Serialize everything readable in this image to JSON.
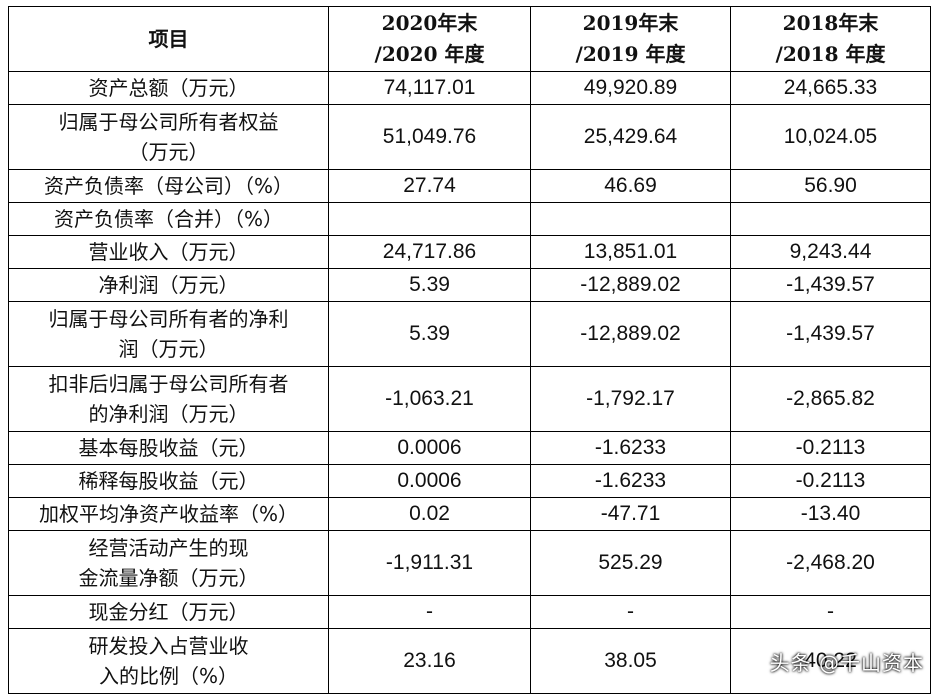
{
  "header": {
    "item": "项目",
    "col1": [
      "2020年末",
      "/2020 年度"
    ],
    "col2": [
      "2019年末",
      "/2019 年度"
    ],
    "col3": [
      "2018年末",
      "/2018 年度"
    ]
  },
  "rows": [
    {
      "label": [
        "资产总额（万元）"
      ],
      "v": [
        "74,117.01",
        "49,920.89",
        "24,665.33"
      ],
      "h": 1
    },
    {
      "label": [
        "归属于母公司所有者权益",
        "（万元）"
      ],
      "v": [
        "51,049.76",
        "25,429.64",
        "10,024.05"
      ],
      "h": 2
    },
    {
      "label": [
        "资产负债率（母公司）（%）"
      ],
      "v": [
        "27.74",
        "46.69",
        "56.90"
      ],
      "h": 1
    },
    {
      "label": [
        "资产负债率（合并）（%）"
      ],
      "v": [
        "",
        "",
        ""
      ],
      "h": 1
    },
    {
      "label": [
        "营业收入（万元）"
      ],
      "v": [
        "24,717.86",
        "13,851.01",
        "9,243.44"
      ],
      "h": 1
    },
    {
      "label": [
        "净利润（万元）"
      ],
      "v": [
        "5.39",
        "-12,889.02",
        "-1,439.57"
      ],
      "h": 1
    },
    {
      "label": [
        "归属于母公司所有者的净利",
        "润（万元）"
      ],
      "v": [
        "5.39",
        "-12,889.02",
        "-1,439.57"
      ],
      "h": 2
    },
    {
      "label": [
        "扣非后归属于母公司所有者",
        "的净利润（万元）"
      ],
      "v": [
        "-1,063.21",
        "-1,792.17",
        "-2,865.82"
      ],
      "h": 2
    },
    {
      "label": [
        "基本每股收益（元）"
      ],
      "v": [
        "0.0006",
        "-1.6233",
        "-0.2113"
      ],
      "h": 1
    },
    {
      "label": [
        "稀释每股收益（元）"
      ],
      "v": [
        "0.0006",
        "-1.6233",
        "-0.2113"
      ],
      "h": 1
    },
    {
      "label": [
        "加权平均净资产收益率（%）"
      ],
      "v": [
        "0.02",
        "-47.71",
        "-13.40"
      ],
      "h": 1
    },
    {
      "label": [
        "经营活动产生的现",
        "金流量净额（万元）"
      ],
      "v": [
        "-1,911.31",
        "525.29",
        "-2,468.20"
      ],
      "h": 2
    },
    {
      "label": [
        "现金分红（万元）"
      ],
      "v": [
        "-",
        "-",
        "-"
      ],
      "h": 1
    },
    {
      "label": [
        "研发投入占营业收",
        "入的比例（%）"
      ],
      "v": [
        "23.16",
        "38.05",
        "40.22"
      ],
      "h": 2
    }
  ],
  "watermark": "头条 @千山资本"
}
